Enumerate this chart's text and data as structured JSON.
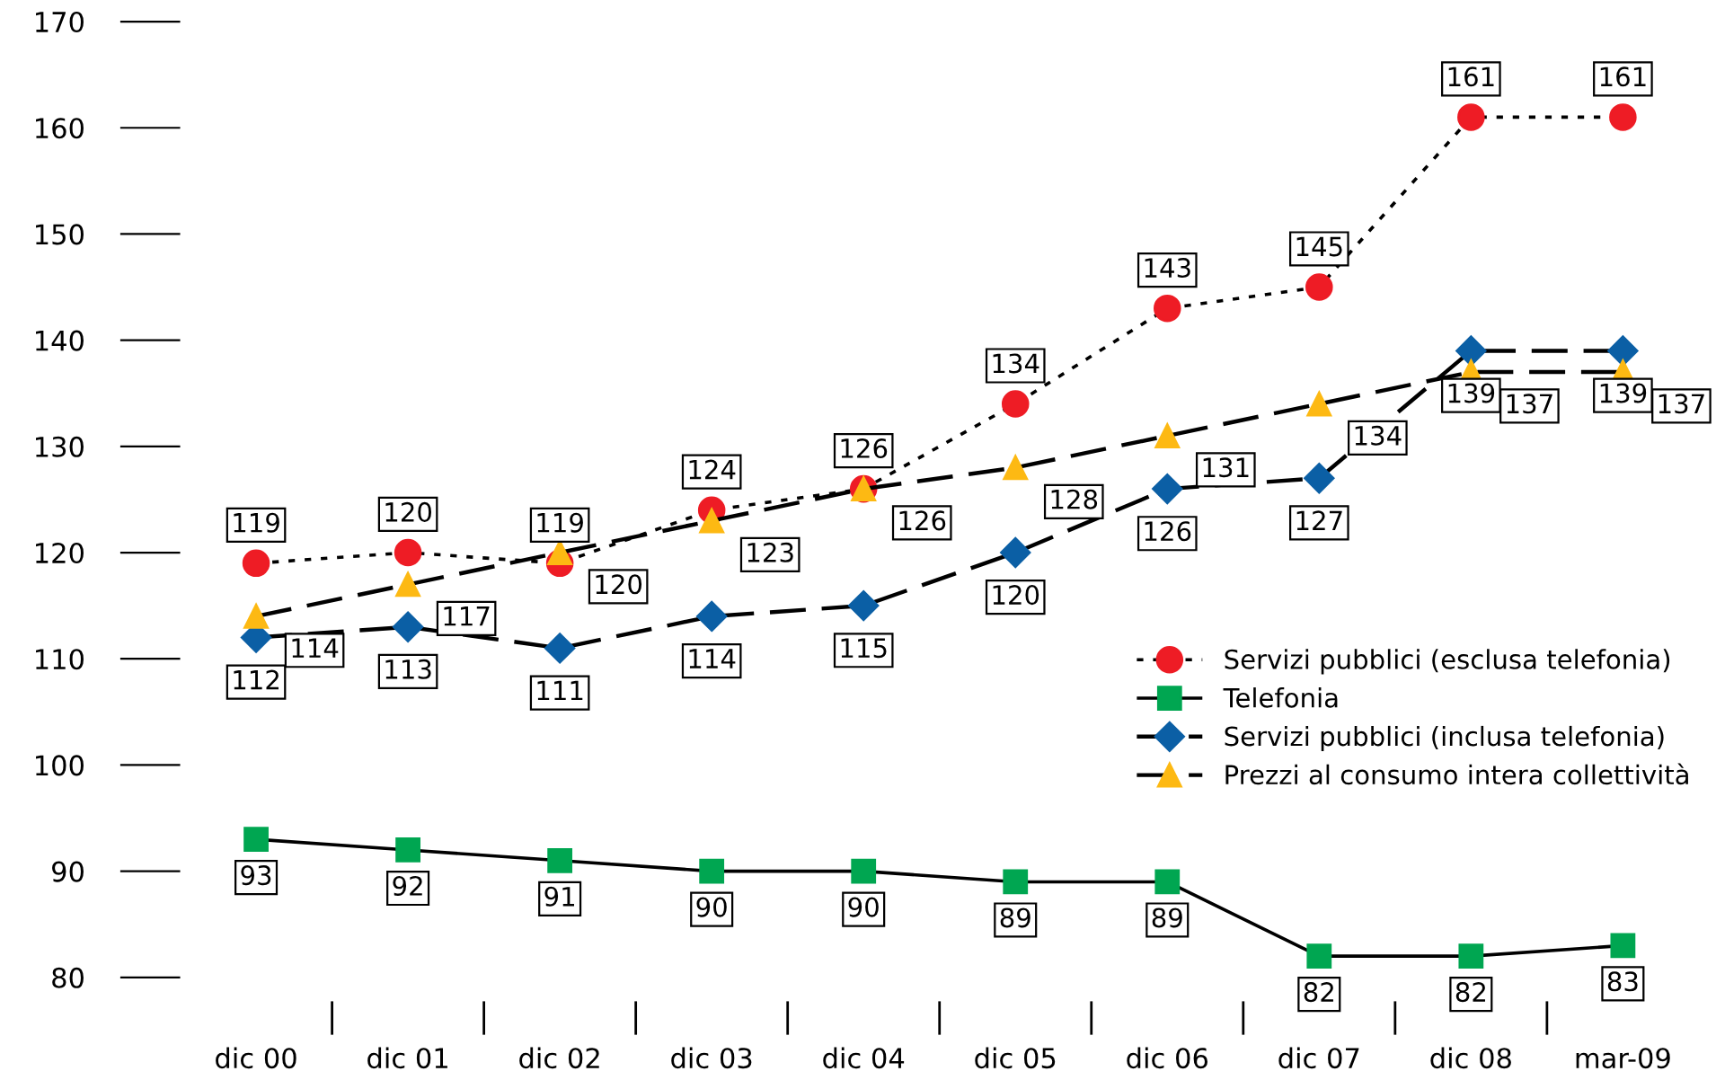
{
  "chart_data": {
    "type": "line",
    "categories": [
      "dic 00",
      "dic 01",
      "dic 02",
      "dic 03",
      "dic 04",
      "dic 05",
      "dic 06",
      "dic 07",
      "dic 08",
      "mar-09"
    ],
    "series": [
      {
        "name": "Servizi pubblici (esclusa telefonia)",
        "color": "#ee1c25",
        "marker": "circle",
        "line_style": "dotted",
        "values": [
          119,
          120,
          119,
          124,
          126,
          134,
          143,
          145,
          161,
          161
        ]
      },
      {
        "name": "Telefonia",
        "color": "#00a651",
        "marker": "square",
        "line_style": "solid",
        "values": [
          93,
          92,
          91,
          90,
          90,
          89,
          89,
          82,
          82,
          83
        ]
      },
      {
        "name": "Servizi pubblici (inclusa telefonia)",
        "color": "#0b5fa5",
        "marker": "diamond",
        "line_style": "dashed",
        "values": [
          112,
          113,
          111,
          114,
          115,
          120,
          126,
          127,
          139,
          139
        ]
      },
      {
        "name": "Prezzi al consumo intera collettività",
        "color": "#fdb913",
        "marker": "triangle",
        "line_style": "dashed",
        "values": [
          114,
          117,
          120,
          123,
          126,
          128,
          131,
          134,
          137,
          137
        ]
      }
    ],
    "ylim": [
      80,
      170
    ],
    "yticks": [
      80,
      90,
      100,
      110,
      120,
      130,
      140,
      150,
      160,
      170
    ],
    "grid": false,
    "legend": "right",
    "data_labels": true
  }
}
